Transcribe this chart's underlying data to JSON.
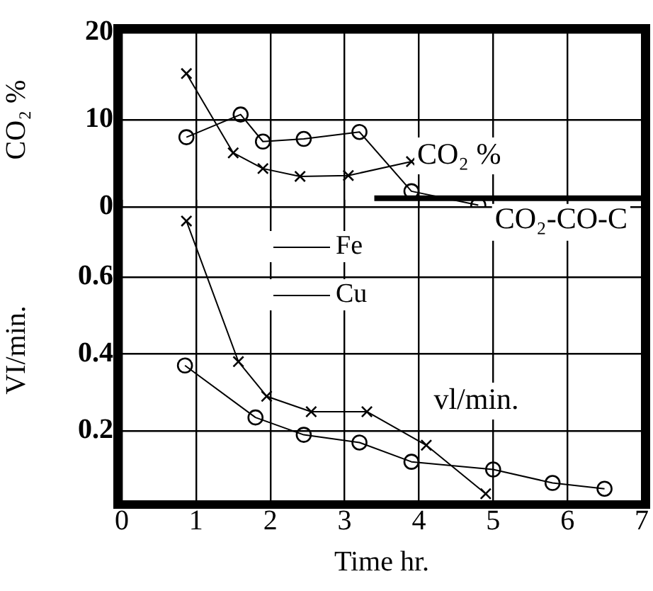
{
  "chart_data": [
    {
      "type": "line",
      "ylabel": "CO₂ %",
      "xlim": [
        0,
        7
      ],
      "xticks": [
        0,
        1,
        2,
        3,
        4,
        5,
        6,
        7
      ],
      "ylim": [
        0,
        20
      ],
      "yticks": [
        0,
        10,
        20
      ],
      "tick_labels": "y",
      "grid": true,
      "legend": false,
      "annotations": [
        {
          "text": "CO₂ %",
          "x": 3.9,
          "y": 5.2
        }
      ],
      "series": [
        {
          "color": "#000000",
          "marker": "cross",
          "x": [
            0.87,
            1.5,
            1.9,
            2.4,
            3.05,
            3.9
          ],
          "values": [
            15.3,
            6.2,
            4.4,
            3.5,
            3.6,
            5.2
          ]
        },
        {
          "color": "#000000",
          "marker": "circle",
          "x": [
            0.87,
            1.6,
            1.9,
            2.45,
            3.2,
            3.9,
            4.8
          ],
          "values": [
            8.0,
            10.6,
            7.5,
            7.8,
            8.6,
            1.8,
            0.2
          ]
        },
        {
          "name": "CO₂-CO-C",
          "color": "#000000",
          "marker": "none",
          "x": [
            3.4,
            7
          ],
          "values": [
            1,
            1
          ]
        }
      ]
    },
    {
      "type": "line",
      "xlabel": "Time hr.",
      "ylabel": "VI/min.",
      "xlim": [
        0,
        7
      ],
      "xticks": [
        0,
        1,
        2,
        3,
        4,
        5,
        6,
        7
      ],
      "ylim": [
        0.02,
        0.8
      ],
      "yticks": [
        0.2,
        0.4,
        0.6
      ],
      "grid": true,
      "legend": "top",
      "annotations": [
        "vl/min."
      ],
      "series": [
        {
          "name": "Fe",
          "color": "#000000",
          "marker": "cross",
          "x": [
            0.87,
            1.57,
            1.95,
            2.55,
            3.3,
            4.1,
            4.9
          ],
          "values": [
            0.745,
            0.38,
            0.29,
            0.25,
            0.25,
            0.163,
            0.037
          ]
        },
        {
          "name": "Cu",
          "color": "#000000",
          "marker": "circle",
          "x": [
            0.85,
            1.8,
            2.45,
            3.2,
            3.9,
            5.0,
            5.8,
            6.5
          ],
          "values": [
            0.37,
            0.235,
            0.19,
            0.17,
            0.12,
            0.1,
            0.065,
            0.05
          ]
        }
      ]
    }
  ]
}
